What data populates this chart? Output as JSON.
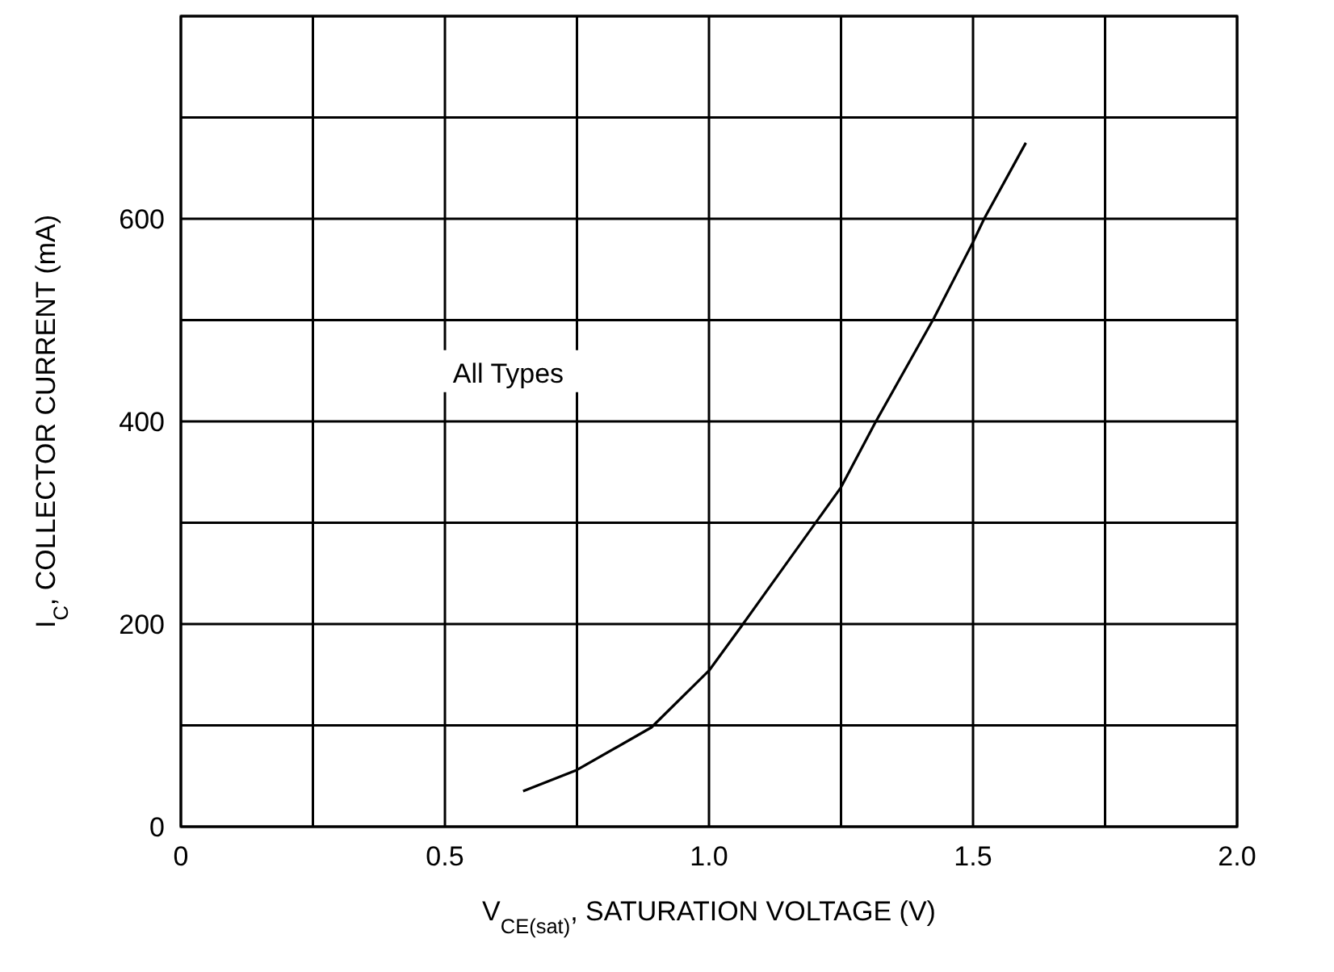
{
  "chart_data": {
    "type": "line",
    "xlabel": "V$_{CE(sat)}$, SATURATION VOLTAGE (V)",
    "ylabel": "I$_{C}$, COLLECTOR CURRENT (mA)",
    "annotations": [
      "All Types"
    ],
    "series": [
      {
        "color": "#000000",
        "x": [
          0.648,
          0.75,
          0.891,
          1.0,
          1.063,
          1.25,
          1.315,
          1.426,
          1.5,
          1.521,
          1.6
        ],
        "values": [
          35,
          56,
          98,
          154,
          199,
          335,
          399,
          502,
          577,
          600,
          675
        ]
      }
    ],
    "xlim": [
      0,
      2
    ],
    "ylim": [
      0,
      800
    ],
    "xticks": [
      0,
      {
        "value": 0.25,
        "label": null
      },
      {
        "value": 0.5,
        "label": "0.5"
      },
      {
        "value": 0.75,
        "label": null
      },
      {
        "value": 1,
        "label": "1.0"
      },
      {
        "value": 1.25,
        "label": null
      },
      {
        "value": 1.5,
        "label": "1.5"
      },
      {
        "value": 1.75,
        "label": null
      },
      {
        "value": 2,
        "label": "2.0"
      }
    ],
    "yticks": [
      0,
      {
        "value": 100,
        "label": null
      },
      200,
      {
        "value": 300,
        "label": null
      },
      400,
      {
        "value": 500,
        "label": null
      },
      600,
      {
        "value": 700,
        "label": null
      },
      {
        "value": 800,
        "label": null
      }
    ],
    "grid": true,
    "marker": "none",
    "line_style": "solid"
  }
}
